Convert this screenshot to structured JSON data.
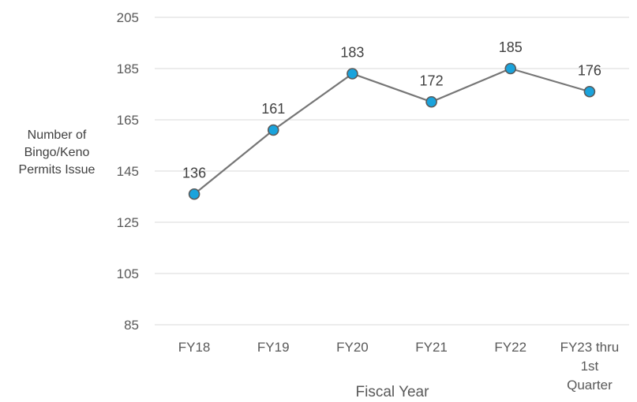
{
  "chart_data": {
    "type": "line",
    "categories": [
      "FY18",
      "FY19",
      "FY20",
      "FY21",
      "FY22",
      "FY23 thru 1st Quarter"
    ],
    "category_label_lines": [
      [
        "FY18"
      ],
      [
        "FY19"
      ],
      [
        "FY20"
      ],
      [
        "FY21"
      ],
      [
        "FY22"
      ],
      [
        "FY23 thru",
        "1st",
        "Quarter"
      ]
    ],
    "series": [
      {
        "values": [
          136,
          161,
          183,
          172,
          185,
          176
        ]
      }
    ],
    "data_labels": [
      "136",
      "161",
      "183",
      "172",
      "185",
      "176"
    ],
    "xlabel": "Fiscal Year",
    "ylabel_lines": [
      "Number of",
      "Bingo/Keno",
      "Permits Issue"
    ],
    "ylim": [
      85,
      205
    ],
    "yticks": [
      85,
      105,
      125,
      145,
      165,
      185,
      205
    ],
    "grid": true,
    "legend": "none",
    "colors": {
      "line": "#767676",
      "marker_fill": "#1aa3dc",
      "marker_edge": "#5a5a5a",
      "grid": "#d9d9d9"
    }
  }
}
